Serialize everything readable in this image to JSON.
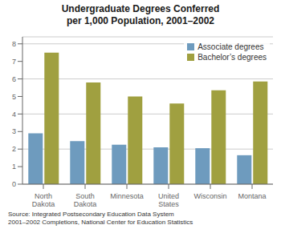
{
  "chart_data": {
    "type": "bar",
    "title": "Undergraduate Degrees Conferred\nper 1,000 Population, 2001–2002",
    "categories": [
      "North\nDakota",
      "South\nDakota",
      "Minnesota",
      "United\nStates",
      "Wisconsin",
      "Montana"
    ],
    "series": [
      {
        "name": "Associate degrees",
        "color": "#6e9bbe",
        "values": [
          2.9,
          2.45,
          2.25,
          2.1,
          2.05,
          1.65
        ]
      },
      {
        "name": "Bachelor’s degrees",
        "color": "#a0a040",
        "values": [
          7.5,
          5.8,
          5.0,
          4.6,
          5.35,
          5.85
        ]
      }
    ],
    "ylim": [
      0,
      8.4
    ],
    "yticks": [
      0,
      1,
      2,
      3,
      4,
      5,
      6,
      7,
      8
    ],
    "grid": true,
    "legend": "upper right",
    "annotation": "Source: Integrated Postsecondary Education Data System\n2001–2002 Completions, National Center for Education Statistics"
  }
}
